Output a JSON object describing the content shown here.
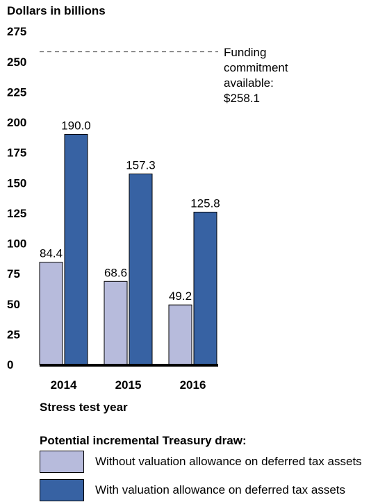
{
  "chart_data": {
    "type": "bar",
    "ylabel": "Dollars in billions",
    "xlabel": "Stress test year",
    "categories": [
      "2014",
      "2015",
      "2016"
    ],
    "ylim": [
      0,
      275
    ],
    "yticks": [
      "0",
      "25",
      "50",
      "75",
      "100",
      "125",
      "150",
      "175",
      "200",
      "225",
      "250",
      "275"
    ],
    "series": [
      {
        "name": "Without valuation allowance on deferred tax assets",
        "values": [
          84.4,
          68.6,
          49.2
        ],
        "labels": [
          "84.4",
          "68.6",
          "49.2"
        ],
        "color": "#b7bbdc"
      },
      {
        "name": "With valuation allowance on deferred tax assets",
        "values": [
          190.0,
          157.3,
          125.8
        ],
        "labels": [
          "190.0",
          "157.3",
          "125.8"
        ],
        "color": "#3762a3"
      }
    ],
    "reference_line": {
      "value": 258.1,
      "label_lines": [
        "Funding",
        "commitment",
        "available:",
        "$258.1"
      ]
    },
    "legend_title": "Potential incremental Treasury draw:",
    "legend_placement": "bottom"
  }
}
